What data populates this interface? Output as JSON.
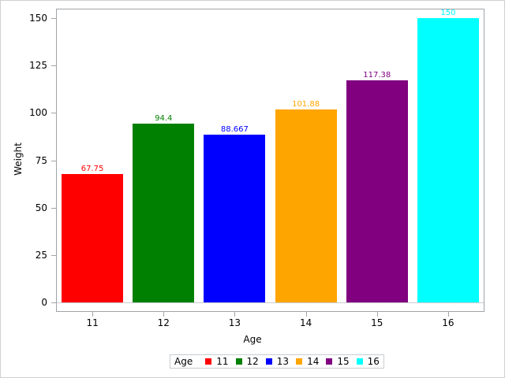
{
  "chart_data": {
    "type": "bar",
    "title": "",
    "xlabel": "Age",
    "ylabel": "Weight",
    "categories": [
      "11",
      "12",
      "13",
      "14",
      "15",
      "16"
    ],
    "values": [
      67.75,
      94.4,
      88.667,
      101.88,
      117.38,
      150
    ],
    "data_labels": [
      "67.75",
      "94.4",
      "88.667",
      "101.88",
      "117.38",
      "150"
    ],
    "colors": [
      "#ff0000",
      "#008000",
      "#0000ff",
      "#ffa500",
      "#800080",
      "#00ffff"
    ],
    "ylim": [
      0,
      150
    ],
    "yticks": [
      "0",
      "25",
      "50",
      "75",
      "100",
      "125",
      "150"
    ],
    "grid": false,
    "legend": {
      "title": "Age",
      "position": "bottom",
      "entries": [
        "11",
        "12",
        "13",
        "14",
        "15",
        "16"
      ]
    }
  }
}
